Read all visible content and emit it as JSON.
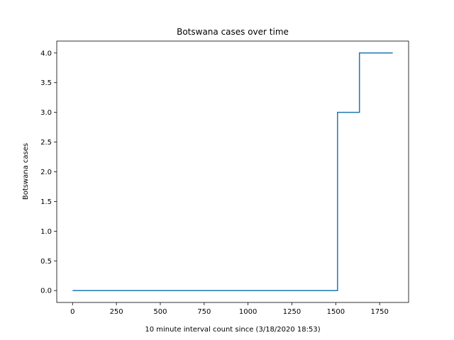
{
  "chart_data": {
    "type": "line",
    "line_style": "step",
    "title": "Botswana cases over time",
    "xlabel": "10 minute interval count since (3/18/2020 18:53)",
    "ylabel": "Botswana cases",
    "xlim": [
      -90,
      1915
    ],
    "ylim": [
      -0.2,
      4.2
    ],
    "xticks": [
      0,
      250,
      500,
      750,
      1000,
      1250,
      1500,
      1750
    ],
    "xtick_labels": [
      "0",
      "250",
      "500",
      "750",
      "1000",
      "1250",
      "1500",
      "1750"
    ],
    "yticks": [
      0.0,
      0.5,
      1.0,
      1.5,
      2.0,
      2.5,
      3.0,
      3.5,
      4.0
    ],
    "ytick_labels": [
      "0.0",
      "0.5",
      "1.0",
      "1.5",
      "2.0",
      "2.5",
      "3.0",
      "3.5",
      "4.0"
    ],
    "grid": false,
    "series": [
      {
        "color": "#1f77b4",
        "x": [
          0,
          1510,
          1510,
          1635,
          1635,
          1825
        ],
        "y": [
          0,
          0,
          3,
          3,
          4,
          4
        ]
      }
    ]
  }
}
